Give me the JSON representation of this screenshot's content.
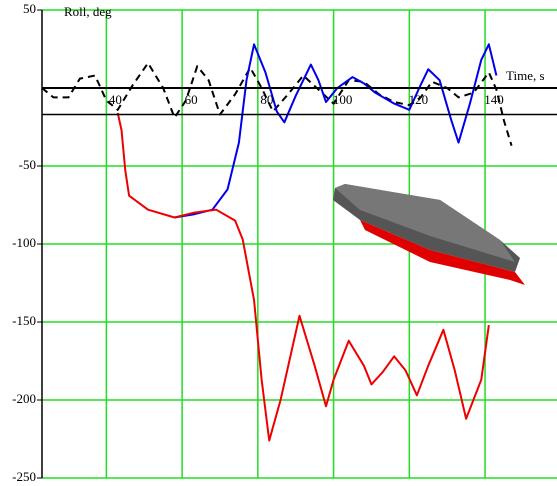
{
  "chart_data": {
    "type": "line",
    "y_label": "Roll, deg",
    "x_label": "Time, s",
    "xlim": [
      23,
      159
    ],
    "ylim": [
      -250,
      50
    ],
    "xticks": [
      40,
      60,
      80,
      100,
      120,
      140
    ],
    "yticks": [
      50,
      -50,
      -100,
      -150,
      -200,
      -250
    ],
    "grid": true,
    "grid_color": "#22dd22",
    "reference_line": -17,
    "series": [
      {
        "color": "#000000",
        "dash": true,
        "x": [
          23,
          26,
          30,
          33,
          37,
          40,
          43,
          47,
          51,
          55,
          58,
          61,
          64,
          67,
          70,
          74,
          78,
          81,
          84,
          88,
          92,
          96,
          100,
          104,
          108,
          112,
          116,
          120,
          123,
          126,
          130,
          133,
          137,
          141,
          143,
          145,
          147
        ],
        "values": [
          0,
          -6,
          -6,
          6,
          8,
          -8,
          -14,
          2,
          16,
          0,
          -19,
          -8,
          14,
          5,
          -17,
          -4,
          13,
          0,
          -15,
          -4,
          8,
          -1,
          -10,
          5,
          4,
          -4,
          -9,
          -11,
          -6,
          4,
          0,
          -6,
          -3,
          10,
          -1,
          -21,
          -37
        ]
      },
      {
        "color": "#0000ee",
        "dash": false,
        "x": [
          58,
          63,
          68,
          72,
          75,
          77,
          79,
          82,
          85,
          87,
          90,
          94,
          96,
          98,
          101,
          105,
          108,
          111,
          116,
          120,
          123,
          125,
          128,
          131,
          133,
          136,
          139,
          141,
          143
        ],
        "values": [
          -83,
          -81,
          -78,
          -65,
          -35,
          5,
          28,
          10,
          -15,
          -22,
          -5,
          15,
          5,
          -9,
          0,
          7,
          3,
          -3,
          -10,
          -14,
          2,
          12,
          5,
          -20,
          -35,
          -10,
          18,
          28,
          8
        ]
      },
      {
        "color": "#ee0000",
        "dash": false,
        "x": [
          43,
          44,
          45,
          46,
          51,
          58,
          63,
          69,
          74,
          76,
          79,
          81,
          83,
          86,
          91,
          95,
          98,
          100,
          104,
          108,
          110,
          113,
          116,
          119,
          122,
          125,
          129,
          132,
          135,
          139,
          141
        ],
        "values": [
          -16,
          -27,
          -53,
          -69,
          -78,
          -83,
          -80,
          -78,
          -85,
          -97,
          -136,
          -187,
          -226,
          -200,
          -146,
          -178,
          -204,
          -187,
          -162,
          -178,
          -190,
          -182,
          -172,
          -181,
          -197,
          -178,
          -155,
          -181,
          -212,
          -187,
          -152
        ]
      }
    ]
  }
}
